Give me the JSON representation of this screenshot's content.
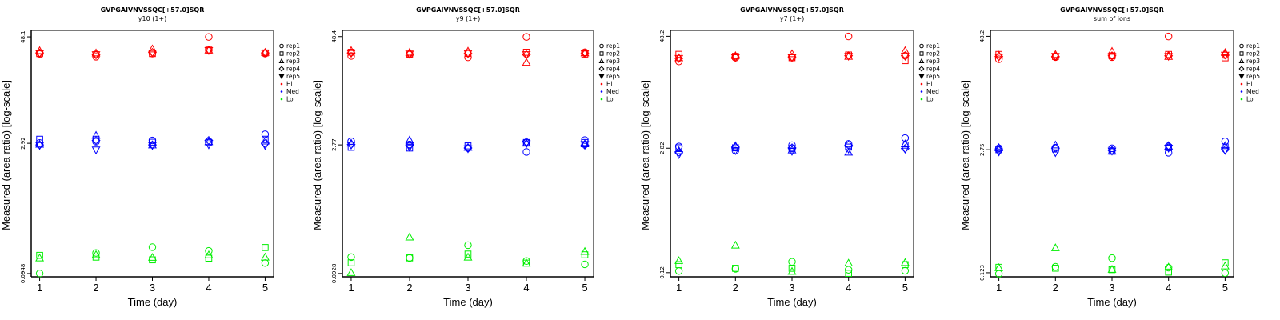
{
  "chart_data": [
    {
      "type": "scatter",
      "title": "GVPGAIVNVSSQC[+57.0]SQR",
      "subtitle": "y10 (1+)",
      "xlabel": "Time (day)",
      "ylabel": "Measured (area ratio) [log-scale]",
      "y_scale": "log",
      "x_ticks": [
        1,
        2,
        3,
        4,
        5
      ],
      "y_ticks": [
        {
          "value": 48.1,
          "label": "48.1"
        },
        {
          "value": 2.92,
          "label": "2.92"
        },
        {
          "value": 0.0948,
          "label": "0.0948"
        }
      ],
      "xlim": [
        0.85,
        5.15
      ],
      "ylim": [
        0.087,
        57
      ],
      "grid": false,
      "legend_position": "right",
      "series": [
        {
          "name": "Hi",
          "color": "#ff0000",
          "points": {
            "rep1": [
              30.5,
              28.5,
              31.0,
              48.0,
              31.0
            ],
            "rep2": [
              31.0,
              30.0,
              31.0,
              34.0,
              31.5
            ],
            "rep3": [
              33.5,
              31.5,
              35.0,
              34.0,
              32.0
            ],
            "rep4": [
              31.5,
              30.0,
              32.0,
              34.0,
              31.5
            ],
            "rep5": [
              31.0,
              30.0,
              31.5,
              33.5,
              31.5
            ]
          }
        },
        {
          "name": "Med",
          "color": "#0000ff",
          "points": {
            "rep1": [
              2.95,
              3.05,
              3.15,
              3.0,
              3.7
            ],
            "rep2": [
              3.25,
              3.25,
              3.0,
              2.95,
              3.25
            ],
            "rep3": [
              2.85,
              3.6,
              2.8,
              3.05,
              3.1
            ],
            "rep4": [
              2.8,
              3.15,
              2.8,
              3.15,
              2.9
            ],
            "rep5": [
              2.75,
              2.45,
              2.75,
              2.8,
              2.75
            ]
          }
        },
        {
          "name": "Lo",
          "color": "#00ee00",
          "points": {
            "rep1": [
              0.095,
              0.163,
              0.19,
              0.172,
              0.125
            ],
            "rep2": [
              0.153,
              0.146,
              0.136,
              0.142,
              0.188
            ],
            "rep3": [
              0.143,
              0.156,
              0.145,
              0.155,
              0.146
            ]
          }
        }
      ]
    },
    {
      "type": "scatter",
      "title": "GVPGAIVNVSSQC[+57.0]SQR",
      "subtitle": "y9 (1+)",
      "xlabel": "Time (day)",
      "ylabel": "Measured (area ratio) [log-scale]",
      "y_scale": "log",
      "x_ticks": [
        1,
        2,
        3,
        4,
        5
      ],
      "y_ticks": [
        {
          "value": 48.4,
          "label": "48.4"
        },
        {
          "value": 2.77,
          "label": "2.77"
        },
        {
          "value": 0.0928,
          "label": "0.0928"
        }
      ],
      "xlim": [
        0.85,
        5.15
      ],
      "ylim": [
        0.085,
        57
      ],
      "grid": false,
      "legend_position": "right",
      "series": [
        {
          "name": "Hi",
          "color": "#ff0000",
          "points": {
            "rep1": [
              29.0,
              30.0,
              28.0,
              48.0,
              32.0
            ],
            "rep2": [
              32.0,
              30.5,
              31.0,
              32.0,
              30.5
            ],
            "rep3": [
              33.5,
              32.0,
              33.0,
              24.5,
              31.5
            ],
            "rep4": [
              31.5,
              30.5,
              31.0,
              30.0,
              31.0
            ],
            "rep5": [
              31.0,
              30.5,
              31.0,
              30.0,
              31.0
            ]
          }
        },
        {
          "name": "Med",
          "color": "#0000ff",
          "points": {
            "rep1": [
              3.05,
              2.8,
              2.55,
              2.3,
              3.15
            ],
            "rep2": [
              2.6,
              2.55,
              2.7,
              2.95,
              2.95
            ],
            "rep3": [
              2.9,
              3.15,
              2.6,
              2.9,
              2.85
            ],
            "rep4": [
              2.8,
              2.75,
              2.55,
              3.0,
              2.75
            ],
            "rep5": [
              2.75,
              2.6,
              2.5,
              2.85,
              2.8
            ]
          }
        },
        {
          "name": "Lo",
          "color": "#00ee00",
          "points": {
            "rep1": [
              0.143,
              0.14,
              0.196,
              0.129,
              0.118
            ],
            "rep2": [
              0.123,
              0.14,
              0.155,
              0.122,
              0.152
            ],
            "rep3": [
              0.095,
              0.243,
              0.143,
              0.122,
              0.166
            ]
          }
        }
      ]
    },
    {
      "type": "scatter",
      "title": "GVPGAIVNVSSQC[+57.0]SQR",
      "subtitle": "y7 (1+)",
      "xlabel": "Time (day)",
      "ylabel": "Measured (area ratio) [log-scale]",
      "y_scale": "log",
      "x_ticks": [
        1,
        2,
        3,
        4,
        5
      ],
      "y_ticks": [
        {
          "value": 48.2,
          "label": "48.2"
        },
        {
          "value": 2.82,
          "label": "2.82"
        },
        {
          "value": 0.12,
          "label": "0.12"
        }
      ],
      "xlim": [
        0.85,
        5.15
      ],
      "ylim": [
        0.108,
        56
      ],
      "grid": false,
      "legend_position": "right",
      "series": [
        {
          "name": "Hi",
          "color": "#ff0000",
          "points": {
            "rep1": [
              25.5,
              28.0,
              28.0,
              48.0,
              29.5
            ],
            "rep2": [
              30.5,
              29.0,
              28.0,
              30.0,
              26.0
            ],
            "rep3": [
              28.0,
              29.5,
              31.0,
              29.0,
              33.5
            ],
            "rep4": [
              27.5,
              28.5,
              28.5,
              29.5,
              29.5
            ],
            "rep5": [
              27.5,
              28.0,
              28.0,
              29.0,
              29.0
            ]
          }
        },
        {
          "name": "Med",
          "color": "#0000ff",
          "points": {
            "rep1": [
              2.95,
              2.65,
              3.05,
              3.15,
              3.65
            ],
            "rep2": [
              2.85,
              2.85,
              2.8,
              2.9,
              3.05
            ],
            "rep3": [
              2.65,
              3.0,
              2.7,
              2.55,
              3.15
            ],
            "rep4": [
              2.55,
              2.9,
              2.85,
              3.05,
              2.8
            ],
            "rep5": [
              2.4,
              2.65,
              2.6,
              2.75,
              2.75
            ]
          }
        },
        {
          "name": "Lo",
          "color": "#00ee00",
          "points": {
            "rep1": [
              0.125,
              0.132,
              0.158,
              0.129,
              0.126
            ],
            "rep2": [
              0.147,
              0.134,
              0.134,
              0.118,
              0.147
            ],
            "rep3": [
              0.163,
              0.241,
              0.124,
              0.153,
              0.155
            ]
          }
        }
      ]
    },
    {
      "type": "scatter",
      "title": "GVPGAIVNVSSQC[+57.0]SQR",
      "subtitle": "sum of ions",
      "xlabel": "Time (day)",
      "ylabel": "Measured (area ratio) [log-scale]",
      "y_scale": "log",
      "x_ticks": [
        1,
        2,
        3,
        4,
        5
      ],
      "y_ticks": [
        {
          "value": 48.2,
          "label": "48.2"
        },
        {
          "value": 2.75,
          "label": "2.75"
        },
        {
          "value": 0.123,
          "label": "0.123"
        }
      ],
      "xlim": [
        0.85,
        5.15
      ],
      "ylim": [
        0.111,
        56
      ],
      "grid": false,
      "legend_position": "right",
      "series": [
        {
          "name": "Hi",
          "color": "#ff0000",
          "points": {
            "rep1": [
              27.0,
              28.5,
              28.5,
              48.0,
              30.0
            ],
            "rep2": [
              30.5,
              29.0,
              29.5,
              30.5,
              28.0
            ],
            "rep3": [
              30.0,
              30.5,
              33.0,
              29.0,
              32.0
            ],
            "rep4": [
              29.0,
              29.0,
              29.5,
              29.5,
              30.5
            ],
            "rep5": [
              28.5,
              29.0,
              29.0,
              29.0,
              30.0
            ]
          }
        },
        {
          "name": "Med",
          "color": "#0000ff",
          "points": {
            "rep1": [
              2.85,
              2.9,
              2.85,
              2.55,
              3.4
            ],
            "rep2": [
              2.75,
              2.8,
              2.65,
              2.9,
              2.95
            ],
            "rep3": [
              2.9,
              3.1,
              2.65,
              3.0,
              3.05
            ],
            "rep4": [
              2.7,
              2.85,
              2.7,
              3.05,
              2.75
            ],
            "rep5": [
              2.6,
              2.55,
              2.65,
              2.85,
              2.7
            ]
          }
        },
        {
          "name": "Lo",
          "color": "#00ee00",
          "points": {
            "rep1": [
              0.12,
              0.143,
              0.178,
              0.14,
              0.122
            ],
            "rep2": [
              0.141,
              0.138,
              0.133,
              0.125,
              0.158
            ],
            "rep3": [
              0.14,
              0.231,
              0.134,
              0.142,
              0.146
            ]
          }
        }
      ]
    }
  ],
  "legend": {
    "shapes": [
      {
        "label": "rep1",
        "shape": "circle"
      },
      {
        "label": "rep2",
        "shape": "square"
      },
      {
        "label": "rep3",
        "shape": "triangle-up"
      },
      {
        "label": "rep4",
        "shape": "diamond"
      },
      {
        "label": "rep5",
        "shape": "triangle-down"
      }
    ],
    "colors": [
      {
        "label": "Hi",
        "color": "#ff0000"
      },
      {
        "label": "Med",
        "color": "#0000ff"
      },
      {
        "label": "Lo",
        "color": "#00ee00"
      }
    ]
  }
}
